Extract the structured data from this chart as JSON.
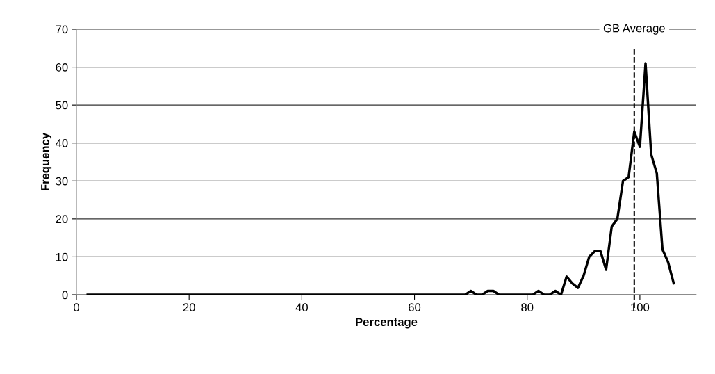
{
  "chart_data": {
    "type": "line",
    "xlabel": "Percentage",
    "ylabel": "Frequency",
    "x": [
      2,
      3,
      4,
      5,
      6,
      7,
      8,
      9,
      10,
      11,
      12,
      13,
      14,
      15,
      16,
      17,
      18,
      19,
      20,
      21,
      22,
      23,
      24,
      25,
      26,
      27,
      28,
      29,
      30,
      31,
      32,
      33,
      34,
      35,
      36,
      37,
      38,
      39,
      40,
      41,
      42,
      43,
      44,
      45,
      46,
      47,
      48,
      49,
      50,
      51,
      52,
      53,
      54,
      55,
      56,
      57,
      58,
      59,
      60,
      61,
      62,
      63,
      64,
      65,
      66,
      67,
      68,
      69,
      70,
      71,
      72,
      73,
      74,
      75,
      76,
      77,
      78,
      79,
      80,
      81,
      82,
      83,
      84,
      85,
      86,
      87,
      88,
      89,
      90,
      91,
      92,
      93,
      94,
      95,
      96,
      97,
      98,
      99,
      100,
      101,
      102,
      103,
      104,
      105,
      106
    ],
    "series": [
      {
        "color": "#000000",
        "values": [
          0,
          0,
          0,
          0,
          0,
          0,
          0,
          0,
          0,
          0,
          0,
          0,
          0,
          0,
          0,
          0,
          0,
          0,
          0,
          0,
          0,
          0,
          0,
          0,
          0,
          0,
          0,
          0,
          0,
          0,
          0,
          0,
          0,
          0,
          0,
          0,
          0,
          0,
          0,
          0,
          0,
          0,
          0,
          0,
          0,
          0,
          0,
          0,
          0,
          0,
          0,
          0,
          0,
          0,
          0,
          0,
          0,
          0,
          0,
          0,
          0,
          0,
          0,
          0,
          0,
          0,
          0,
          0,
          1,
          0,
          0,
          1,
          1,
          0,
          0,
          0,
          0,
          0,
          0,
          0,
          1,
          0,
          0,
          1,
          0,
          4.8,
          3,
          1.8,
          5,
          10,
          11.5,
          11.5,
          6.6,
          18,
          20,
          30,
          31,
          43,
          39,
          61,
          37,
          32,
          12,
          8.6,
          3
        ]
      }
    ],
    "xlim": [
      0,
      110
    ],
    "xticks": [
      0,
      20,
      40,
      60,
      80,
      100
    ],
    "ylim": [
      0,
      70
    ],
    "yticks": [
      0,
      10,
      20,
      30,
      40,
      50,
      60,
      70
    ],
    "ref_lines": [
      {
        "axis": "x",
        "value": 99,
        "label": "GB Average",
        "color": "#000000",
        "line_style": "dashed"
      }
    ],
    "grid": "y",
    "marker": "none",
    "line_style": "solid"
  }
}
